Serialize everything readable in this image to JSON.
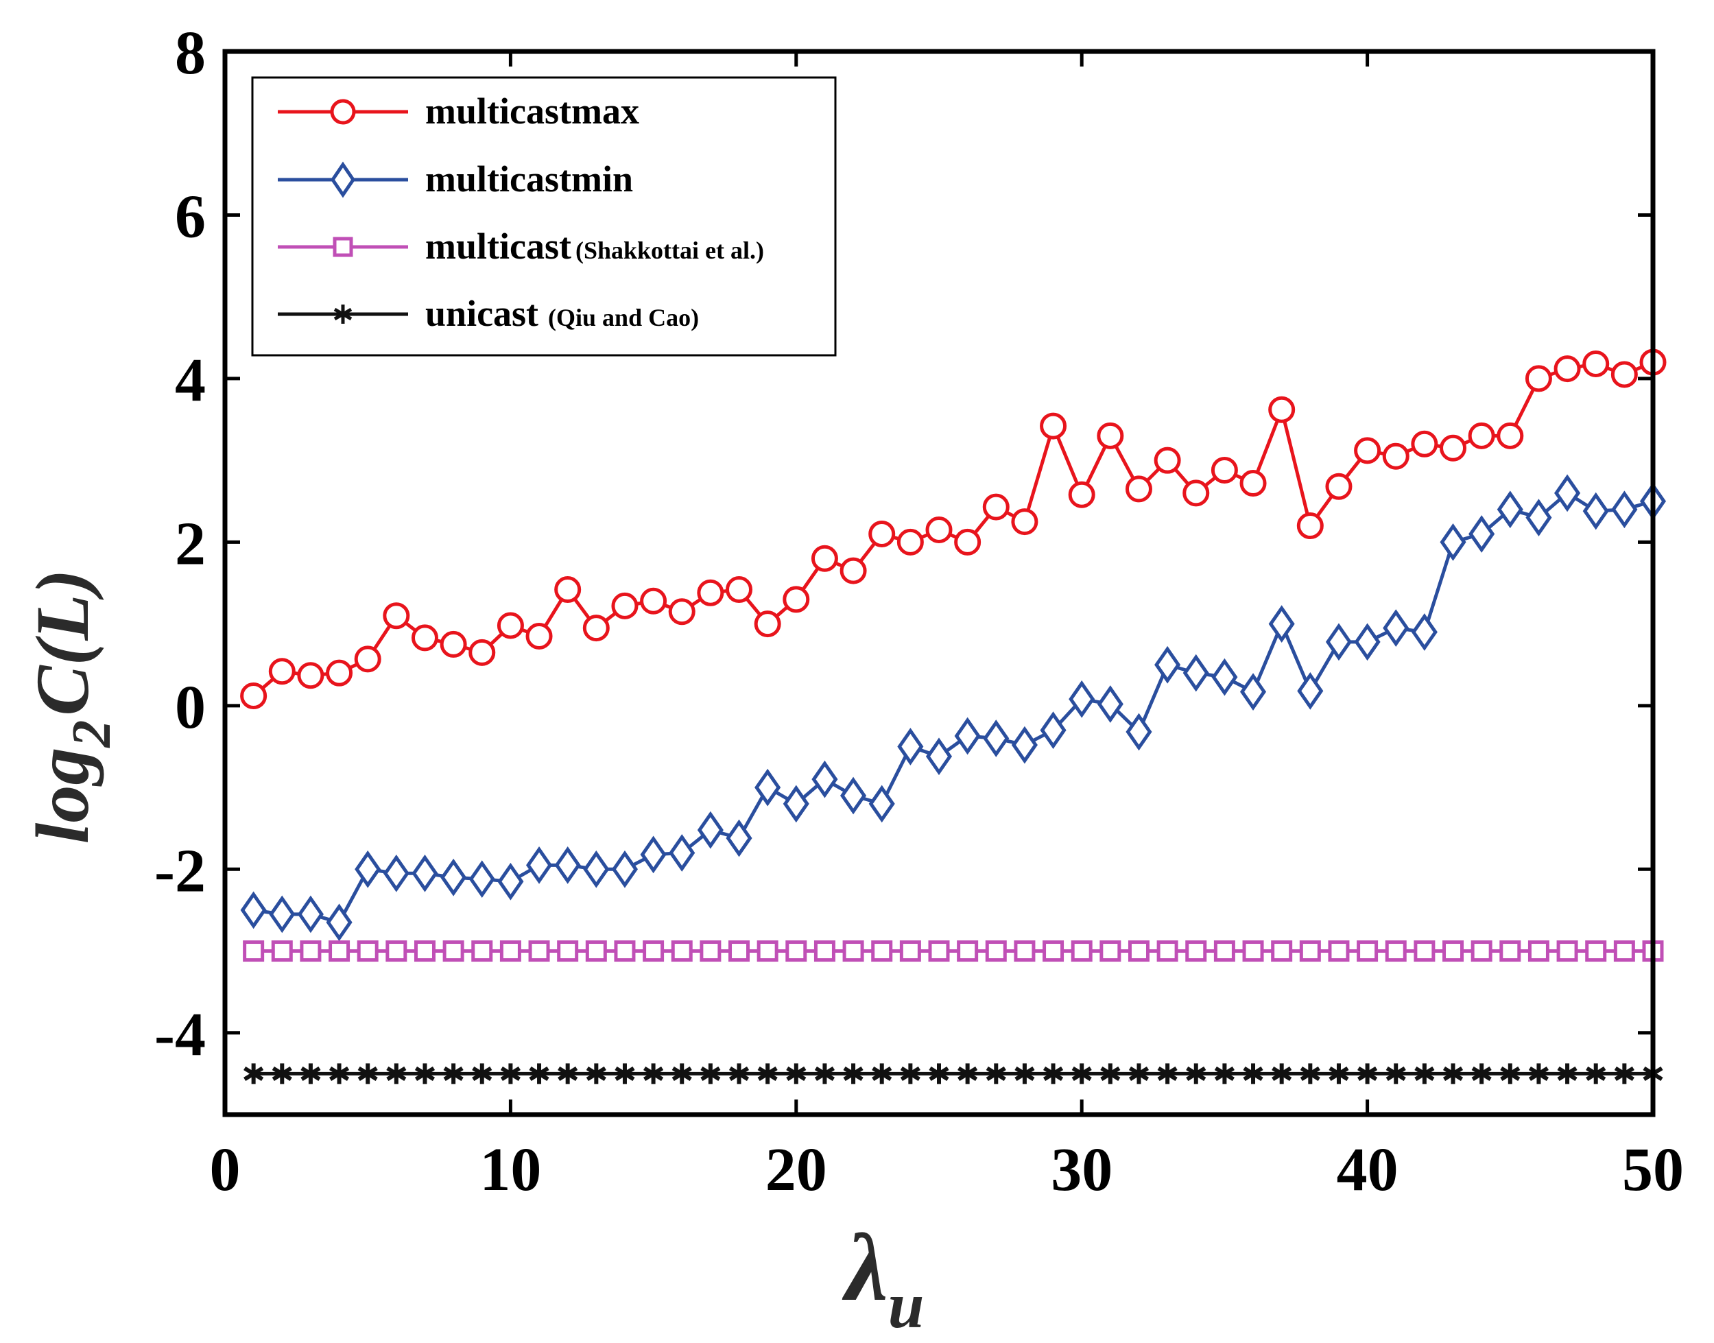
{
  "chart_data": {
    "type": "line",
    "title": "",
    "xlabel": "λ",
    "xlabel_sub": "u",
    "ylabel_parts": {
      "base": "log",
      "sub": "2",
      "rest": "C(L)"
    },
    "xlim": [
      0,
      50
    ],
    "ylim": [
      -5,
      8
    ],
    "xticks": [
      0,
      10,
      20,
      30,
      40,
      50
    ],
    "xtick_labels": [
      "0",
      "10",
      "20",
      "30",
      "40",
      "50"
    ],
    "yticks": [
      8,
      6,
      4,
      2,
      0,
      -2,
      -4
    ],
    "ytick_labels": [
      "8",
      "6",
      "4",
      "2",
      "0",
      "-2",
      "-4"
    ],
    "grid": false,
    "legend_position": "top-left",
    "x": [
      1,
      2,
      3,
      4,
      5,
      6,
      7,
      8,
      9,
      10,
      11,
      12,
      13,
      14,
      15,
      16,
      17,
      18,
      19,
      20,
      21,
      22,
      23,
      24,
      25,
      26,
      27,
      28,
      29,
      30,
      31,
      32,
      33,
      34,
      35,
      36,
      37,
      38,
      39,
      40,
      41,
      42,
      43,
      44,
      45,
      46,
      47,
      48,
      49,
      50
    ],
    "series": [
      {
        "name": "multicastmax",
        "legend_main": "multicastmax",
        "legend_cite": "",
        "color": "#e8141c",
        "marker": "circle",
        "values": [
          0.12,
          0.42,
          0.37,
          0.4,
          0.57,
          1.1,
          0.83,
          0.75,
          0.65,
          0.98,
          0.85,
          1.42,
          0.95,
          1.22,
          1.28,
          1.15,
          1.38,
          1.42,
          1.0,
          1.3,
          1.8,
          1.65,
          2.1,
          2.0,
          2.15,
          2.0,
          2.43,
          2.25,
          3.42,
          2.58,
          3.3,
          2.65,
          3.0,
          2.6,
          2.88,
          2.72,
          3.62,
          2.2,
          2.68,
          3.12,
          3.05,
          3.2,
          3.15,
          3.3,
          3.3,
          4.0,
          4.12,
          4.18,
          4.05,
          4.2
        ]
      },
      {
        "name": "multicastmin",
        "legend_main": "multicastmin",
        "legend_cite": "",
        "color": "#2a4e9e",
        "marker": "diamond",
        "values": [
          -2.5,
          -2.55,
          -2.55,
          -2.65,
          -2.0,
          -2.05,
          -2.05,
          -2.1,
          -2.12,
          -2.15,
          -1.95,
          -1.95,
          -2.0,
          -2.0,
          -1.82,
          -1.8,
          -1.52,
          -1.62,
          -1.0,
          -1.2,
          -0.9,
          -1.1,
          -1.2,
          -0.5,
          -0.62,
          -0.37,
          -0.4,
          -0.48,
          -0.3,
          0.08,
          0.02,
          -0.32,
          0.5,
          0.4,
          0.35,
          0.17,
          1.0,
          0.18,
          0.78,
          0.78,
          0.95,
          0.9,
          2.0,
          2.1,
          2.4,
          2.3,
          2.6,
          2.38,
          2.4,
          2.5
        ]
      },
      {
        "name": "multicast (Shakkottai et al.)",
        "legend_main": "multicast",
        "legend_cite": "(Shakkottai et al.)",
        "color": "#c04fb6",
        "marker": "square",
        "values": [
          -3,
          -3,
          -3,
          -3,
          -3,
          -3,
          -3,
          -3,
          -3,
          -3,
          -3,
          -3,
          -3,
          -3,
          -3,
          -3,
          -3,
          -3,
          -3,
          -3,
          -3,
          -3,
          -3,
          -3,
          -3,
          -3,
          -3,
          -3,
          -3,
          -3,
          -3,
          -3,
          -3,
          -3,
          -3,
          -3,
          -3,
          -3,
          -3,
          -3,
          -3,
          -3,
          -3,
          -3,
          -3,
          -3,
          -3,
          -3,
          -3,
          -3
        ]
      },
      {
        "name": "unicast (Qiu and Cao)",
        "legend_main": "unicast",
        "legend_cite": "(Qiu and Cao)",
        "color": "#111111",
        "marker": "star",
        "values": [
          -4.5,
          -4.5,
          -4.5,
          -4.5,
          -4.5,
          -4.5,
          -4.5,
          -4.5,
          -4.5,
          -4.5,
          -4.5,
          -4.5,
          -4.5,
          -4.5,
          -4.5,
          -4.5,
          -4.5,
          -4.5,
          -4.5,
          -4.5,
          -4.5,
          -4.5,
          -4.5,
          -4.5,
          -4.5,
          -4.5,
          -4.5,
          -4.5,
          -4.5,
          -4.5,
          -4.5,
          -4.5,
          -4.5,
          -4.5,
          -4.5,
          -4.5,
          -4.5,
          -4.5,
          -4.5,
          -4.5,
          -4.5,
          -4.5,
          -4.5,
          -4.5,
          -4.5,
          -4.5,
          -4.5,
          -4.5,
          -4.5,
          -4.5
        ]
      }
    ]
  }
}
